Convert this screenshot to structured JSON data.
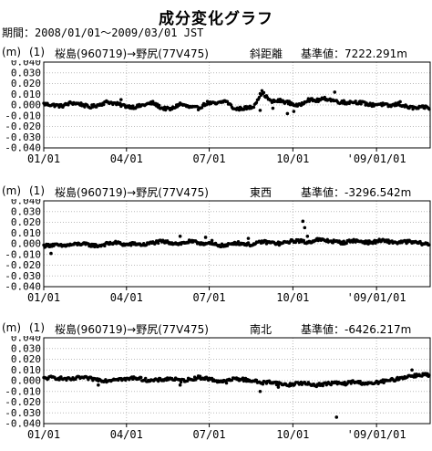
{
  "title": "成分変化グラフ",
  "period": "期間：2008/01/01～2009/03/01 JST",
  "colors": {
    "axis": "#000000",
    "grid": "#bbbbbb",
    "point": "#000000"
  },
  "chart_data": [
    {
      "type": "scatter",
      "unit": "(m)",
      "index": "(1)",
      "route": "桜島(960719)→野尻(77V475)",
      "component": "斜距離",
      "baseline": "基準値：7222.291m",
      "ylim": [
        -0.04,
        0.04
      ],
      "y_ticks": [
        "0.040",
        "0.030",
        "0.020",
        "0.010",
        "0.000",
        "-0.010",
        "-0.020",
        "-0.030",
        "-0.040"
      ],
      "x_ticks": [
        "01/01",
        "04/01",
        "07/01",
        "10/01",
        "'09/01/01"
      ],
      "series": [
        {
          "days": [
            0,
            10,
            20,
            30,
            40,
            50,
            60,
            70,
            80,
            90,
            100,
            110,
            120,
            130,
            140,
            150,
            160,
            170,
            180,
            190,
            200,
            210,
            220,
            230,
            240,
            250,
            260,
            270,
            280,
            290,
            300,
            310,
            320,
            330,
            340,
            350,
            360,
            370,
            380,
            390,
            400,
            410,
            420,
            425
          ],
          "values": [
            0.001,
            0.0,
            -0.001,
            0.002,
            0.001,
            -0.002,
            0.0,
            0.003,
            0.001,
            -0.001,
            -0.002,
            0.0,
            0.002,
            -0.003,
            -0.004,
            0.001,
            -0.002,
            -0.003,
            0.002,
            0.001,
            0.004,
            -0.004,
            -0.003,
            -0.002,
            0.012,
            0.003,
            0.004,
            0.002,
            -0.001,
            0.005,
            0.004,
            0.006,
            0.004,
            0.002,
            0.003,
            0.002,
            0.0,
            0.001,
            -0.001,
            0.001,
            -0.002,
            -0.003,
            -0.002,
            -0.003
          ],
          "outliers": [
            [
              85,
              0.005
            ],
            [
              238,
              -0.005
            ],
            [
              252,
              -0.003
            ],
            [
              268,
              -0.008
            ],
            [
              275,
              -0.006
            ],
            [
              320,
              0.012
            ],
            [
              330,
              0.004
            ],
            [
              392,
              0.003
            ]
          ]
        }
      ]
    },
    {
      "type": "scatter",
      "unit": "(m)",
      "index": "(1)",
      "route": "桜島(960719)→野尻(77V475)",
      "component": "東西",
      "baseline": "基準値：-3296.542m",
      "ylim": [
        -0.04,
        0.04
      ],
      "y_ticks": [
        "0.040",
        "0.030",
        "0.020",
        "0.010",
        "0.000",
        "-0.010",
        "-0.020",
        "-0.030",
        "-0.040"
      ],
      "x_ticks": [
        "01/01",
        "04/01",
        "07/01",
        "10/01",
        "'09/01/01"
      ],
      "series": [
        {
          "days": [
            0,
            10,
            20,
            30,
            40,
            50,
            60,
            70,
            80,
            90,
            100,
            110,
            120,
            130,
            140,
            150,
            160,
            170,
            180,
            190,
            200,
            210,
            220,
            230,
            240,
            250,
            260,
            270,
            280,
            290,
            300,
            310,
            320,
            330,
            340,
            350,
            360,
            370,
            380,
            390,
            400,
            410,
            420,
            425
          ],
          "values": [
            -0.002,
            -0.001,
            -0.002,
            -0.001,
            0.0,
            -0.001,
            -0.002,
            0.0,
            0.001,
            -0.001,
            0.0,
            -0.001,
            0.001,
            0.002,
            0.001,
            0.0,
            0.002,
            0.001,
            0.0,
            -0.001,
            -0.002,
            0.001,
            0.0,
            -0.001,
            0.002,
            0.001,
            0.0,
            0.002,
            0.003,
            0.001,
            0.004,
            0.003,
            0.002,
            0.001,
            0.003,
            0.002,
            0.001,
            0.003,
            0.002,
            0.001,
            0.002,
            0.001,
            0.0,
            -0.001
          ],
          "outliers": [
            [
              8,
              -0.009
            ],
            [
              150,
              0.007
            ],
            [
              178,
              0.006
            ],
            [
              185,
              0.003
            ],
            [
              225,
              0.005
            ],
            [
              285,
              0.021
            ],
            [
              287,
              0.015
            ],
            [
              290,
              0.007
            ]
          ]
        }
      ]
    },
    {
      "type": "scatter",
      "unit": "(m)",
      "index": "(1)",
      "route": "桜島(960719)→野尻(77V475)",
      "component": "南北",
      "baseline": "基準値：-6426.217m",
      "ylim": [
        -0.04,
        0.04
      ],
      "y_ticks": [
        "0.040",
        "0.030",
        "0.020",
        "0.010",
        "0.000",
        "-0.010",
        "-0.020",
        "-0.030",
        "-0.040"
      ],
      "x_ticks": [
        "01/01",
        "04/01",
        "07/01",
        "10/01",
        "'09/01/01"
      ],
      "series": [
        {
          "days": [
            0,
            10,
            20,
            30,
            40,
            50,
            60,
            70,
            80,
            90,
            100,
            110,
            120,
            130,
            140,
            150,
            160,
            170,
            180,
            190,
            200,
            210,
            220,
            230,
            240,
            250,
            260,
            270,
            280,
            290,
            300,
            310,
            320,
            330,
            340,
            350,
            360,
            370,
            380,
            390,
            400,
            410,
            420,
            425
          ],
          "values": [
            0.002,
            0.003,
            0.002,
            0.001,
            0.003,
            0.002,
            0.001,
            0.0,
            0.002,
            0.001,
            0.003,
            0.001,
            0.0,
            0.001,
            0.002,
            0.0,
            0.001,
            0.003,
            0.002,
            0.0,
            -0.001,
            0.002,
            0.001,
            0.0,
            -0.002,
            -0.001,
            -0.003,
            -0.004,
            -0.002,
            -0.003,
            -0.004,
            -0.003,
            -0.002,
            -0.003,
            -0.001,
            -0.002,
            -0.003,
            -0.001,
            0.0,
            0.002,
            0.004,
            0.005,
            0.006,
            0.004
          ],
          "outliers": [
            [
              60,
              -0.004
            ],
            [
              150,
              -0.004
            ],
            [
              238,
              -0.01
            ],
            [
              258,
              -0.006
            ],
            [
              322,
              -0.034
            ],
            [
              330,
              -0.002
            ],
            [
              405,
              0.01
            ]
          ]
        }
      ]
    }
  ]
}
